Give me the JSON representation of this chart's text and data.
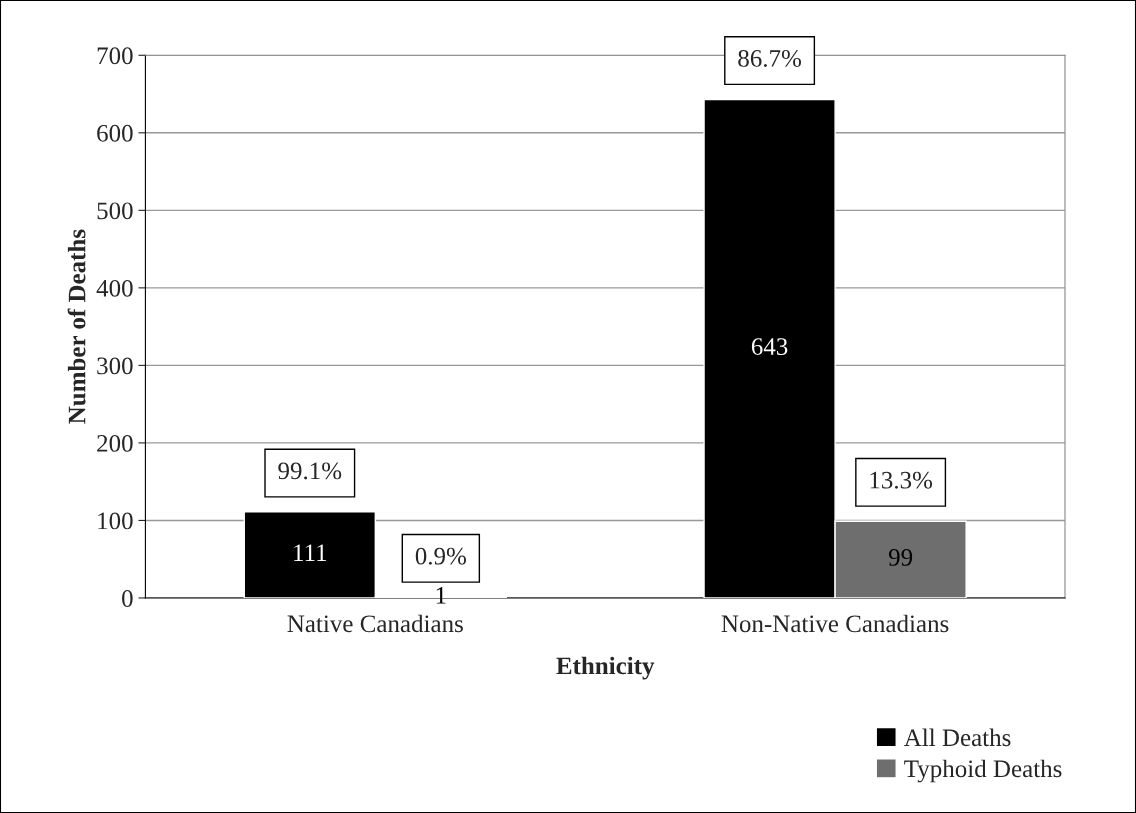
{
  "chart_data": {
    "type": "bar",
    "xlabel": "Ethnicity",
    "ylabel": "Number of Deaths",
    "categories": [
      "Native Canadians",
      "Non-Native Canadians"
    ],
    "series": [
      {
        "name": "All Deaths",
        "color": "#000000",
        "values": [
          111,
          643
        ]
      },
      {
        "name": "Typhoid Deaths",
        "color": "#6e6e6e",
        "values": [
          1,
          99
        ]
      }
    ],
    "annotations": [
      {
        "text": "99.1%",
        "x": "Native Canadians",
        "y": 111
      },
      {
        "text": "0.9%",
        "x": "Native Canadians",
        "y": 1
      },
      {
        "text": "86.7%",
        "x": "Non-Native Canadians",
        "y": 643
      },
      {
        "text": "13.3%",
        "x": "Non-Native Canadians",
        "y": 99
      }
    ],
    "data_labels": true,
    "ylim": [
      0,
      700
    ],
    "yticks": [
      0,
      100,
      200,
      300,
      400,
      500,
      600,
      700
    ],
    "grid": "y",
    "legend": "bottom right"
  }
}
